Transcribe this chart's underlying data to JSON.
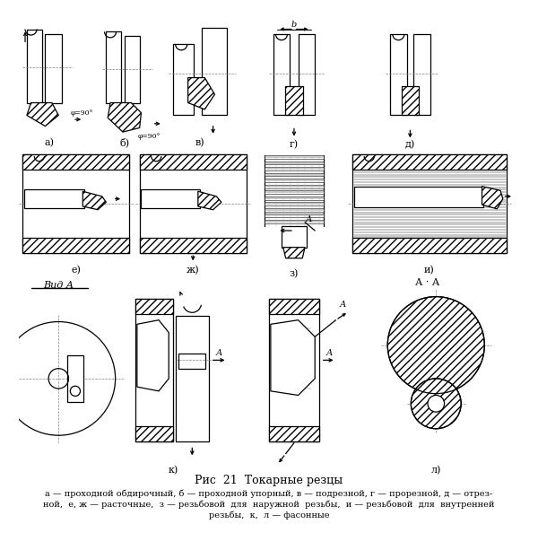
{
  "title": "Рис  21  Токарные резцы",
  "caption_line1": "а — проходной обдирочный, б — проходной упорный, в — подрезной, г — прорезной, д — отрез-",
  "caption_line2": "ной,  е, ж — расточные,  з — резьбовой  для  наружной  резьбы,  и — резьбовой  для  внутренней",
  "caption_line3": "резьбы,  к,  л — фасонные",
  "bg_color": "#f5f5f0",
  "fig_width": 6.0,
  "fig_height": 6.23,
  "dpi": 100,
  "labels": {
    "a": "а)",
    "b": "б)",
    "v": "в)",
    "g": "г)",
    "d": "д)",
    "e": "е)",
    "zh": "ж)",
    "z": "з)",
    "i": "и)",
    "k": "к)",
    "l": "л)"
  },
  "vid_a": "Вид А",
  "aa": "А · А",
  "phi": "φ=90°"
}
